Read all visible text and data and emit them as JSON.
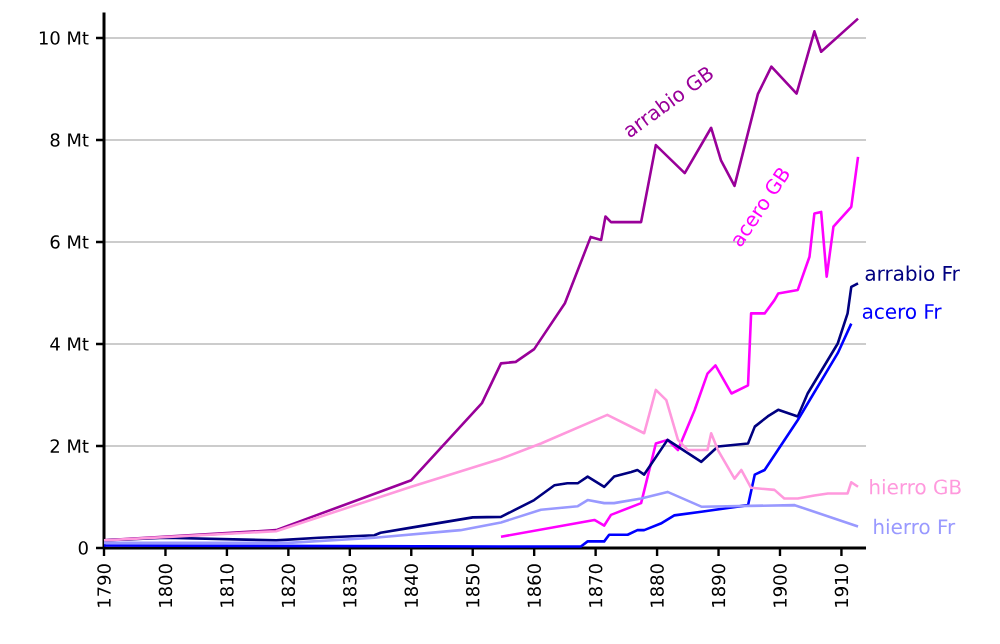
{
  "chart_data": {
    "type": "line",
    "xlim": [
      1790,
      1914
    ],
    "xticks": [
      1790,
      1800,
      1810,
      1820,
      1830,
      1840,
      1850,
      1860,
      1870,
      1880,
      1890,
      1900,
      1910
    ],
    "ylim": [
      0,
      10.5
    ],
    "yticks": [
      0,
      {
        "value": 2,
        "label": "2 Mt"
      },
      {
        "value": 4,
        "label": "4 Mt"
      },
      {
        "value": 6,
        "label": "6 Mt"
      },
      {
        "value": 8,
        "label": "8 Mt"
      },
      {
        "value": 10,
        "label": "10 Mt"
      }
    ],
    "grid": "y",
    "legend": false,
    "marker": "none",
    "line_style": "solid",
    "series": [
      {
        "name": "arrabio GB",
        "color": "#990099",
        "x": [
          1790,
          1818,
          1840,
          1851.5,
          1854.6,
          1857,
          1860,
          1865,
          1869.2,
          1870.9,
          1871.6,
          1872.5,
          1877.4,
          1879.8,
          1884.5,
          1888.8,
          1890.4,
          1892.6,
          1896.4,
          1898.6,
          1902.7,
          1905.6,
          1906.7,
          1912.7
        ],
        "values": [
          0.15,
          0.35,
          1.33,
          2.84,
          3.62,
          3.65,
          3.9,
          4.8,
          6.1,
          6.04,
          6.5,
          6.39,
          6.39,
          7.9,
          7.35,
          8.24,
          7.6,
          7.1,
          8.9,
          9.44,
          8.91,
          10.13,
          9.73,
          10.38
        ]
      },
      {
        "name": "acero GB",
        "color": "#ff00ff",
        "x": [
          1854.6,
          1869.8,
          1871.4,
          1872.5,
          1877.4,
          1879.8,
          1881.7,
          1883.4,
          1886.1,
          1888.2,
          1889.5,
          1892.1,
          1894.8,
          1895.3,
          1897.5,
          1899.1,
          1899.7,
          1902.9,
          1904.8,
          1905.6,
          1906.7,
          1907.6,
          1908.7,
          1911.6,
          1912.7
        ],
        "values": [
          0.22,
          0.55,
          0.44,
          0.65,
          0.88,
          2.05,
          2.12,
          1.92,
          2.7,
          3.42,
          3.58,
          3.03,
          3.19,
          4.6,
          4.6,
          4.86,
          4.99,
          5.06,
          5.71,
          6.56,
          6.59,
          5.32,
          6.3,
          6.69,
          7.67
        ]
      },
      {
        "name": "arrabio Fr",
        "color": "#000080",
        "x": [
          1790,
          1800,
          1818,
          1825,
          1834,
          1835,
          1840,
          1850,
          1854.6,
          1860,
          1863.3,
          1865.4,
          1867.1,
          1868.7,
          1871.4,
          1873,
          1875.8,
          1876.8,
          1877.9,
          1881.7,
          1887.2,
          1889.9,
          1894.8,
          1895.9,
          1898,
          1899.7,
          1902.9,
          1904.5,
          1909.4,
          1911,
          1911.6,
          1912.7
        ],
        "values": [
          0.15,
          0.2,
          0.15,
          0.2,
          0.25,
          0.3,
          0.4,
          0.6,
          0.61,
          0.94,
          1.23,
          1.27,
          1.27,
          1.4,
          1.2,
          1.4,
          1.49,
          1.53,
          1.44,
          2.12,
          1.69,
          1.99,
          2.05,
          2.38,
          2.58,
          2.71,
          2.58,
          3.03,
          4.01,
          4.6,
          5.12,
          5.19
        ]
      },
      {
        "name": "acero Fr",
        "color": "#0000ff",
        "x": [
          1790,
          1854.6,
          1867.6,
          1868.7,
          1871.4,
          1872.2,
          1875.2,
          1876.8,
          1877.9,
          1880.6,
          1882.8,
          1887.2,
          1894.8,
          1895.9,
          1897.5,
          1902.9,
          1909.4,
          1911.6
        ],
        "values": [
          0.05,
          0.03,
          0.03,
          0.13,
          0.13,
          0.26,
          0.26,
          0.35,
          0.35,
          0.48,
          0.64,
          0.71,
          0.84,
          1.44,
          1.53,
          2.51,
          3.82,
          4.4
        ]
      },
      {
        "name": "hierro GB",
        "color": "#ff99dd",
        "x": [
          1790,
          1818,
          1840,
          1854.6,
          1861.1,
          1871.9,
          1877.9,
          1879.8,
          1881.5,
          1883.4,
          1885,
          1888.2,
          1888.8,
          1889.9,
          1892.6,
          1893.7,
          1895.3,
          1899.1,
          1900.7,
          1902.9,
          1905.6,
          1907.8,
          1911,
          1911.6,
          1912.7
        ],
        "values": [
          0.15,
          0.33,
          1.2,
          1.75,
          2.05,
          2.61,
          2.25,
          3.1,
          2.9,
          2.12,
          1.92,
          1.92,
          2.25,
          1.92,
          1.36,
          1.53,
          1.18,
          1.14,
          0.97,
          0.97,
          1.03,
          1.07,
          1.07,
          1.29,
          1.2
        ]
      },
      {
        "name": "hierro Fr",
        "color": "#9999ff",
        "x": [
          1790,
          1820,
          1834,
          1848,
          1854.6,
          1861.1,
          1867.1,
          1868.7,
          1871.4,
          1873,
          1877.4,
          1881.7,
          1887.2,
          1902.4,
          1912.7
        ],
        "values": [
          0.1,
          0.1,
          0.2,
          0.35,
          0.5,
          0.75,
          0.82,
          0.94,
          0.88,
          0.88,
          0.97,
          1.1,
          0.81,
          0.84,
          0.42
        ]
      }
    ]
  }
}
